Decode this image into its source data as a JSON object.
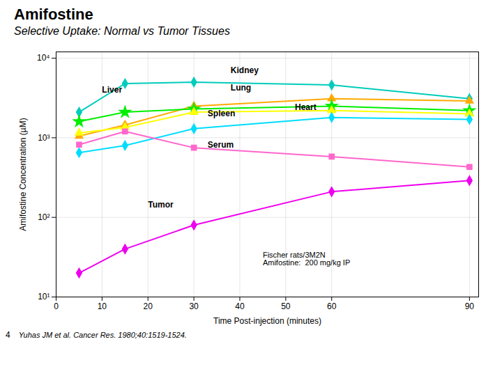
{
  "chart_data": {
    "type": "line",
    "title": "Amifostine",
    "subtitle": "Selective Uptake: Normal vs Tumor Tissues",
    "xlabel": "Time Post-injection (minutes)",
    "ylabel": "Amifostine Concentration (µM)",
    "x": [
      5,
      15,
      30,
      60,
      90
    ],
    "series": [
      {
        "name": "Kidney",
        "color": "#00ccbb",
        "marker": "diamond",
        "values": [
          2100,
          4800,
          5000,
          4600,
          3100
        ],
        "label_position": [
          38,
          7000
        ]
      },
      {
        "name": "Lung",
        "color": "#ffaa00",
        "marker": "triangle",
        "values": [
          1050,
          1450,
          2500,
          3100,
          2900
        ],
        "label_position": [
          38,
          4200
        ]
      },
      {
        "name": "Liver",
        "color": "#00ee00",
        "marker": "star",
        "values": [
          1600,
          2100,
          2300,
          2500,
          2200
        ],
        "label_position": [
          10,
          4000
        ]
      },
      {
        "name": "Spleen",
        "color": "#ffff00",
        "marker": "triangle",
        "values": [
          1150,
          1350,
          2100,
          2200,
          2000
        ],
        "label_position": [
          33,
          2000
        ]
      },
      {
        "name": "Heart",
        "color": "#00ddff",
        "marker": "diamond",
        "values": [
          650,
          800,
          1300,
          1800,
          1700
        ],
        "label_position": [
          52,
          2400
        ]
      },
      {
        "name": "Serum",
        "color": "#ff66cc",
        "marker": "square",
        "values": [
          820,
          1200,
          750,
          580,
          430
        ],
        "label_position": [
          33,
          820
        ]
      },
      {
        "name": "Tumor",
        "color": "#ee00ee",
        "marker": "diamond",
        "values": [
          20,
          40,
          80,
          210,
          290
        ],
        "label_position": [
          20,
          145
        ]
      }
    ],
    "xlim": [
      0,
      92
    ],
    "xticks": [
      0,
      10,
      20,
      30,
      40,
      50,
      60,
      90
    ],
    "ylim": [
      10,
      12000
    ],
    "yticks": [
      {
        "value": 10,
        "label": "10¹"
      },
      {
        "value": 100,
        "label": "10²"
      },
      {
        "value": 1000,
        "label": "10³"
      },
      {
        "value": 10000,
        "label": "10⁴"
      }
    ],
    "log": "y",
    "grid": true,
    "annotations": [
      {
        "text": "Fischer rats/3M2N\nAmifostine:  200 mg/kg IP",
        "x": 45,
        "y": 25
      }
    ],
    "footnote": "Yuhas JM et al. Cancer Res. 1980;40:1519-1524.",
    "page_number": "4"
  }
}
